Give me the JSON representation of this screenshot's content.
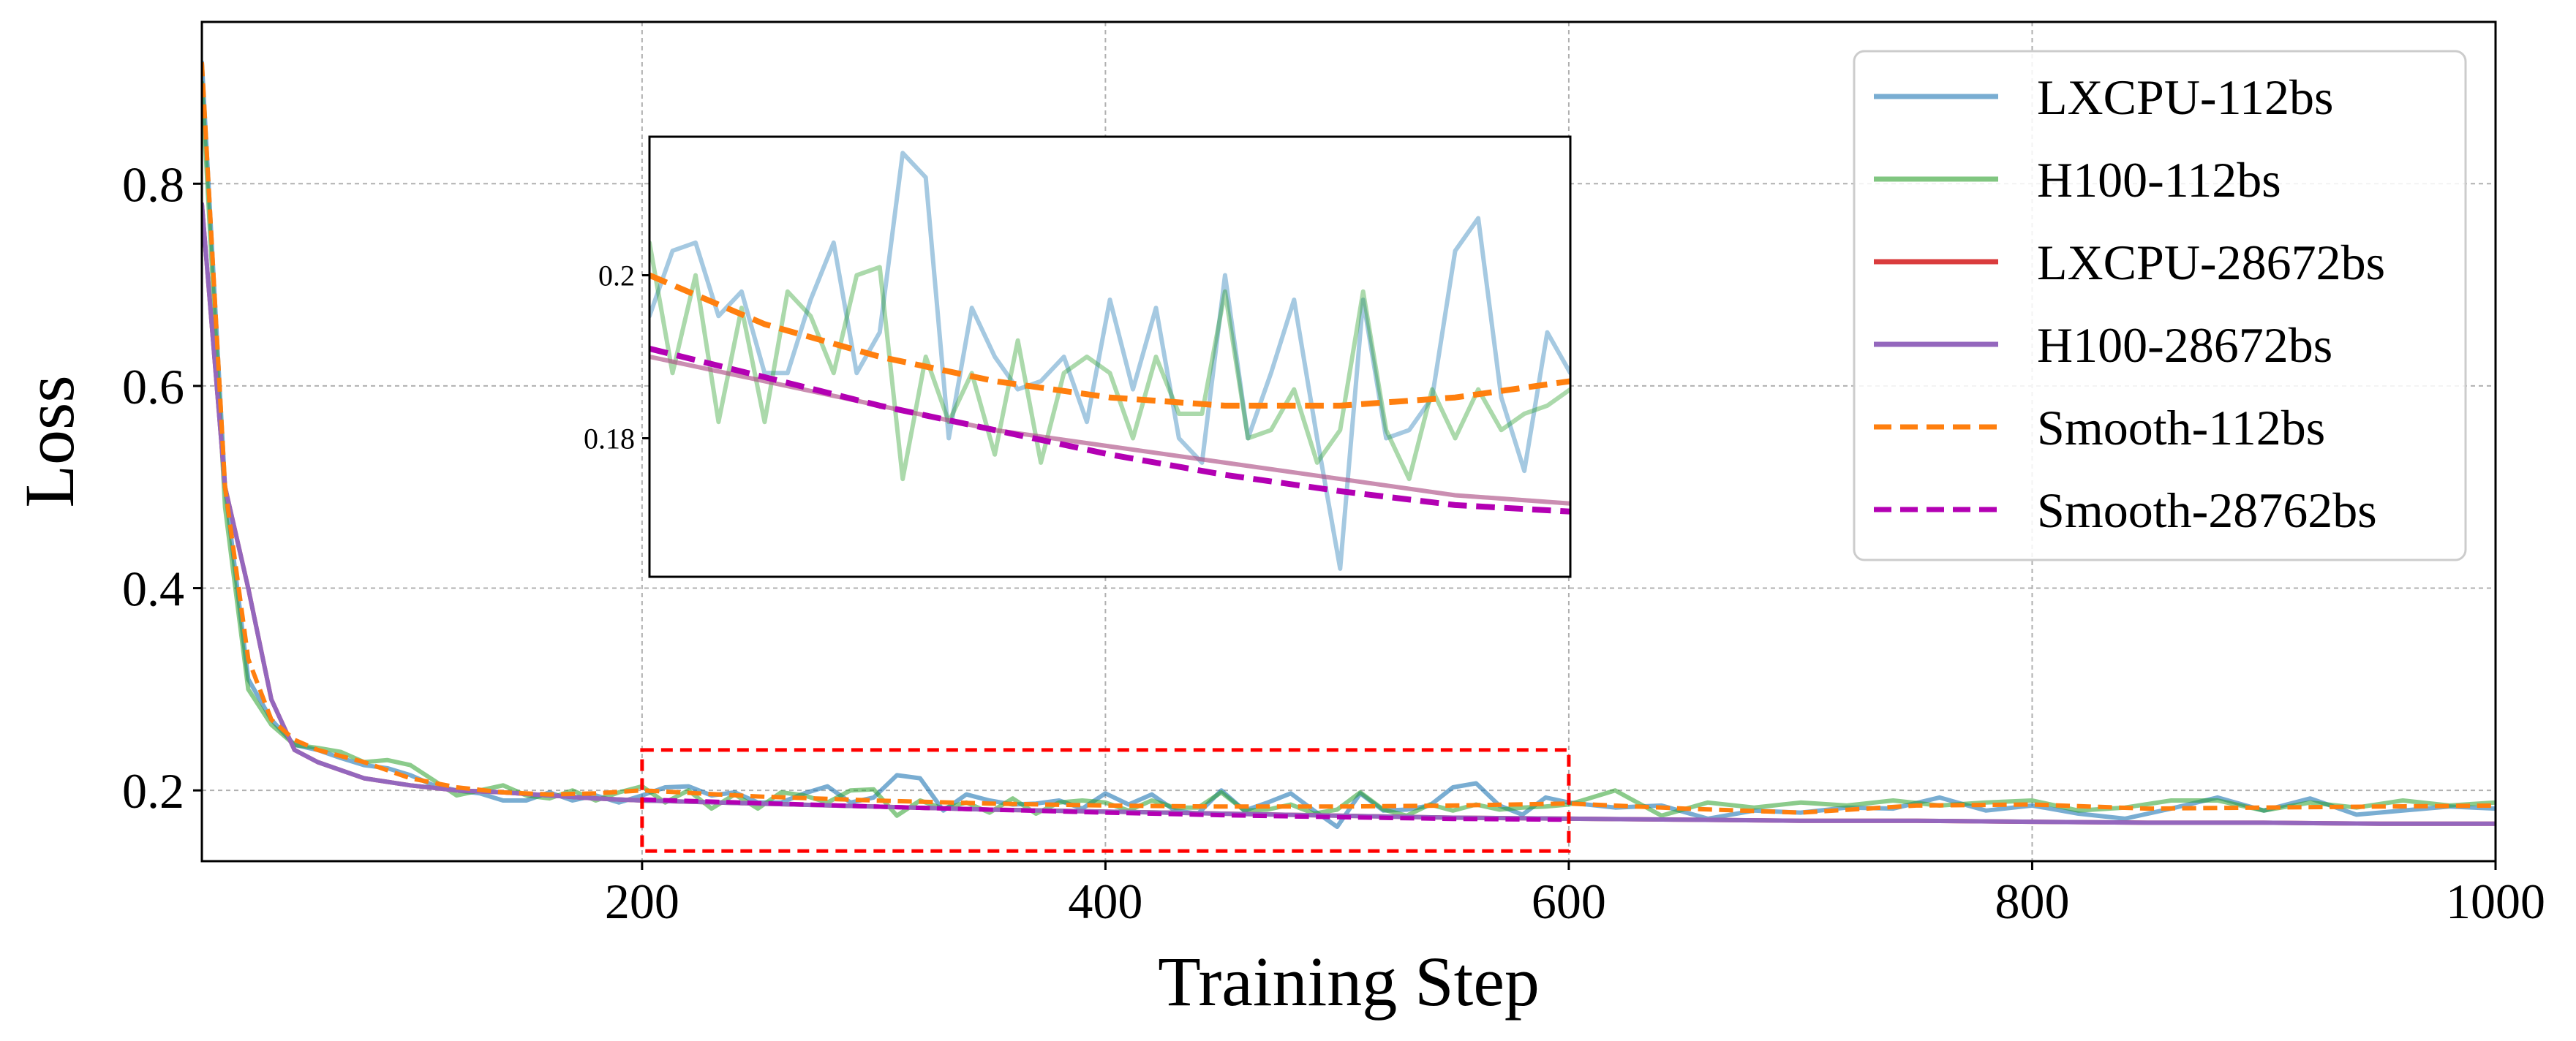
{
  "chart_data": {
    "type": "line",
    "xlabel": "Training Step",
    "ylabel": "Loss",
    "xlim": [
      10,
      1000
    ],
    "ylim": [
      0.13,
      0.96
    ],
    "xticks": [
      200,
      400,
      600,
      800,
      1000
    ],
    "yticks": [
      0.2,
      0.4,
      0.6,
      0.8
    ],
    "ytick_labels": [
      "0.2",
      "0.4",
      "0.6",
      "0.8"
    ],
    "grid": true,
    "legend_position": "top-right",
    "series": [
      {
        "name": "LXCPU-112bs",
        "color": "#1f77b4",
        "style": "solid",
        "alpha": 0.6,
        "x": [
          10,
          20,
          30,
          40,
          50,
          60,
          70,
          80,
          90,
          100,
          110,
          120,
          130,
          140,
          150,
          160,
          170,
          180,
          190,
          200,
          210,
          220,
          230,
          240,
          250,
          260,
          270,
          280,
          290,
          300,
          310,
          320,
          330,
          340,
          350,
          360,
          370,
          380,
          390,
          400,
          410,
          420,
          430,
          440,
          450,
          460,
          470,
          480,
          490,
          500,
          510,
          520,
          530,
          540,
          550,
          560,
          570,
          580,
          590,
          600,
          620,
          640,
          660,
          680,
          700,
          720,
          740,
          760,
          780,
          800,
          820,
          840,
          860,
          880,
          900,
          920,
          940,
          960,
          980,
          1000
        ],
        "y": [
          0.92,
          0.5,
          0.31,
          0.27,
          0.245,
          0.24,
          0.232,
          0.225,
          0.222,
          0.215,
          0.205,
          0.2,
          0.197,
          0.19,
          0.19,
          0.198,
          0.19,
          0.195,
          0.188,
          0.195,
          0.203,
          0.204,
          0.195,
          0.198,
          0.188,
          0.188,
          0.197,
          0.204,
          0.188,
          0.193,
          0.215,
          0.212,
          0.18,
          0.196,
          0.19,
          0.186,
          0.187,
          0.19,
          0.182,
          0.197,
          0.186,
          0.196,
          0.18,
          0.177,
          0.2,
          0.18,
          0.188,
          0.197,
          0.18,
          0.164,
          0.197,
          0.18,
          0.181,
          0.185,
          0.203,
          0.207,
          0.185,
          0.176,
          0.193,
          0.188,
          0.183,
          0.185,
          0.172,
          0.18,
          0.178,
          0.183,
          0.182,
          0.193,
          0.18,
          0.185,
          0.177,
          0.172,
          0.182,
          0.193,
          0.18,
          0.192,
          0.176,
          0.18,
          0.184,
          0.182
        ]
      },
      {
        "name": "H100-112bs",
        "color": "#2ca02c",
        "style": "solid",
        "alpha": 0.55,
        "x": [
          10,
          20,
          30,
          40,
          50,
          60,
          70,
          80,
          90,
          100,
          110,
          120,
          130,
          140,
          150,
          160,
          170,
          180,
          190,
          200,
          210,
          220,
          230,
          240,
          250,
          260,
          270,
          280,
          290,
          300,
          310,
          320,
          330,
          340,
          350,
          360,
          370,
          380,
          390,
          400,
          410,
          420,
          430,
          440,
          450,
          460,
          470,
          480,
          490,
          500,
          510,
          520,
          530,
          540,
          550,
          560,
          570,
          580,
          590,
          600,
          620,
          640,
          660,
          680,
          700,
          720,
          740,
          760,
          780,
          800,
          820,
          840,
          860,
          880,
          900,
          920,
          940,
          960,
          980,
          1000
        ],
        "y": [
          0.9,
          0.48,
          0.3,
          0.265,
          0.245,
          0.242,
          0.238,
          0.228,
          0.23,
          0.225,
          0.21,
          0.195,
          0.2,
          0.205,
          0.195,
          0.192,
          0.2,
          0.19,
          0.198,
          0.204,
          0.188,
          0.2,
          0.182,
          0.196,
          0.182,
          0.198,
          0.195,
          0.188,
          0.2,
          0.201,
          0.175,
          0.19,
          0.182,
          0.188,
          0.178,
          0.192,
          0.177,
          0.188,
          0.19,
          0.188,
          0.18,
          0.19,
          0.183,
          0.183,
          0.198,
          0.18,
          0.181,
          0.186,
          0.177,
          0.181,
          0.198,
          0.181,
          0.175,
          0.186,
          0.18,
          0.186,
          0.181,
          0.183,
          0.184,
          0.186,
          0.2,
          0.175,
          0.188,
          0.183,
          0.188,
          0.185,
          0.19,
          0.185,
          0.188,
          0.19,
          0.18,
          0.183,
          0.19,
          0.19,
          0.18,
          0.188,
          0.183,
          0.19,
          0.185,
          0.188
        ]
      },
      {
        "name": "LXCPU-28672bs",
        "color": "#d62728",
        "style": "solid",
        "alpha": 0.9,
        "x": [
          10,
          20,
          30,
          40,
          50,
          60,
          80,
          100,
          120,
          140,
          160,
          180,
          200,
          250,
          300,
          350,
          400,
          450,
          500,
          550,
          600,
          650,
          700,
          750,
          800,
          850,
          900,
          950,
          1000
        ],
        "y": [
          0.78,
          0.5,
          0.4,
          0.29,
          0.24,
          0.228,
          0.212,
          0.205,
          0.2,
          0.198,
          0.195,
          0.192,
          0.19,
          0.187,
          0.184,
          0.181,
          0.179,
          0.177,
          0.175,
          0.173,
          0.172,
          0.171,
          0.17,
          0.17,
          0.169,
          0.168,
          0.168,
          0.167,
          0.167
        ]
      },
      {
        "name": "H100-28672bs",
        "color": "#9467bd",
        "style": "solid",
        "alpha": 1.0,
        "x": [
          10,
          20,
          30,
          40,
          50,
          60,
          80,
          100,
          120,
          140,
          160,
          180,
          200,
          250,
          300,
          350,
          400,
          450,
          500,
          550,
          600,
          650,
          700,
          750,
          800,
          850,
          900,
          950,
          1000
        ],
        "y": [
          0.78,
          0.5,
          0.4,
          0.29,
          0.24,
          0.228,
          0.212,
          0.205,
          0.2,
          0.198,
          0.195,
          0.192,
          0.19,
          0.187,
          0.184,
          0.181,
          0.179,
          0.177,
          0.175,
          0.173,
          0.172,
          0.171,
          0.17,
          0.17,
          0.169,
          0.168,
          0.168,
          0.167,
          0.167
        ]
      },
      {
        "name": "Smooth-112bs",
        "color": "#ff7f0e",
        "style": "dashed",
        "alpha": 1.0,
        "x": [
          10,
          20,
          30,
          40,
          50,
          60,
          80,
          100,
          120,
          140,
          160,
          180,
          200,
          250,
          300,
          350,
          400,
          450,
          500,
          550,
          600,
          650,
          700,
          750,
          800,
          850,
          900,
          950,
          1000
        ],
        "y": [
          0.92,
          0.5,
          0.33,
          0.27,
          0.25,
          0.24,
          0.228,
          0.212,
          0.203,
          0.198,
          0.196,
          0.197,
          0.2,
          0.194,
          0.19,
          0.187,
          0.185,
          0.184,
          0.184,
          0.185,
          0.187,
          0.182,
          0.178,
          0.185,
          0.186,
          0.182,
          0.183,
          0.184,
          0.185
        ]
      },
      {
        "name": "Smooth-28762bs",
        "color": "#b300b3",
        "style": "dashed",
        "alpha": 1.0,
        "x": [
          200,
          250,
          300,
          350,
          400,
          450,
          500,
          550,
          600
        ],
        "y": [
          0.191,
          0.1875,
          0.184,
          0.181,
          0.178,
          0.1755,
          0.1735,
          0.1718,
          0.171
        ]
      }
    ],
    "inset": {
      "xlim": [
        200,
        600
      ],
      "ylim": [
        0.163,
        0.217
      ],
      "yticks": [
        0.18,
        0.2
      ],
      "ytick_labels": [
        "0.18",
        "0.2"
      ]
    },
    "highlight_box": {
      "xlim": [
        200,
        600
      ],
      "ylim": [
        0.14,
        0.24
      ],
      "color": "#ff0000",
      "style": "dashed"
    }
  }
}
